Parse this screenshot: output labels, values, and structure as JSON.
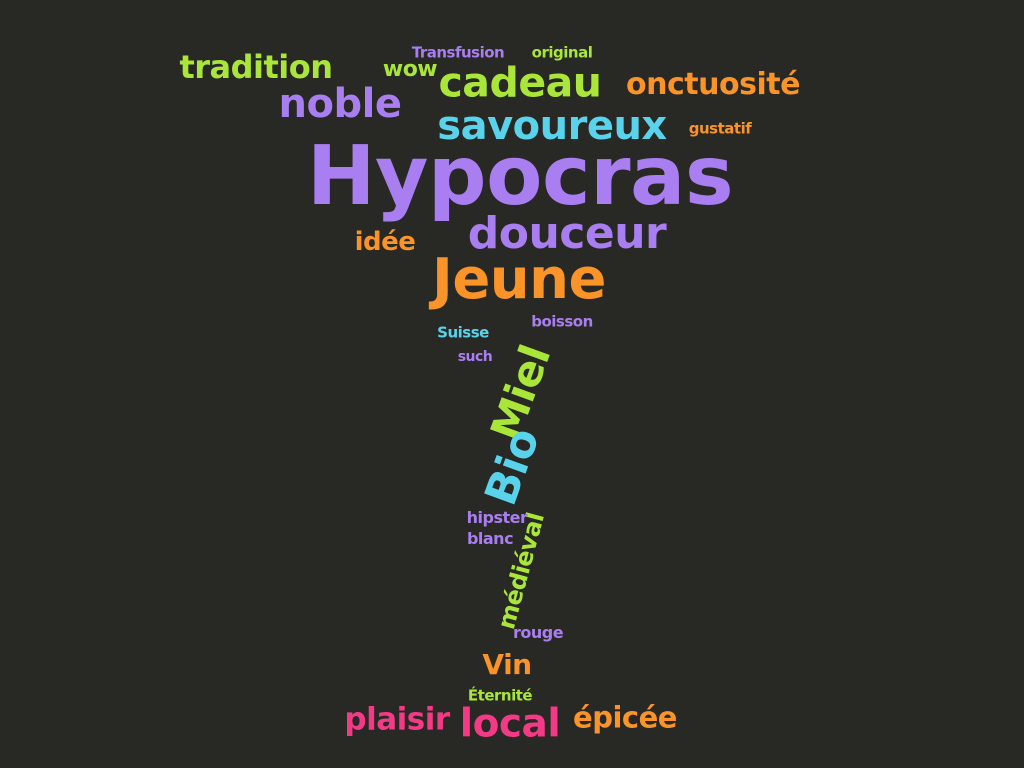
{
  "background": "#282824",
  "palette": {
    "purple": "#a97ef0",
    "green": "#a9e639",
    "blue": "#59d2ec",
    "orange": "#fb9428",
    "pink": "#f43a86"
  },
  "words": [
    {
      "text": "Hypocras",
      "color": "purple",
      "rotation": 0
    },
    {
      "text": "Jeune",
      "color": "orange",
      "rotation": 0
    },
    {
      "text": "savoureux",
      "color": "blue",
      "rotation": 0
    },
    {
      "text": "cadeau",
      "color": "green",
      "rotation": 0
    },
    {
      "text": "douceur",
      "color": "purple",
      "rotation": 0
    },
    {
      "text": "noble",
      "color": "purple",
      "rotation": 0
    },
    {
      "text": "onctuosité",
      "color": "orange",
      "rotation": 0
    },
    {
      "text": "tradition",
      "color": "green",
      "rotation": 0
    },
    {
      "text": "wow",
      "color": "green",
      "rotation": 0
    },
    {
      "text": "Transfusion",
      "color": "purple",
      "rotation": 0
    },
    {
      "text": "original",
      "color": "green",
      "rotation": 0
    },
    {
      "text": "gustatif",
      "color": "orange",
      "rotation": 0
    },
    {
      "text": "idée",
      "color": "orange",
      "rotation": 0
    },
    {
      "text": "Suisse",
      "color": "blue",
      "rotation": 0
    },
    {
      "text": "boisson",
      "color": "purple",
      "rotation": 0
    },
    {
      "text": "such",
      "color": "purple",
      "rotation": 0
    },
    {
      "text": "Miel",
      "color": "green",
      "rotation": -70
    },
    {
      "text": "Bio",
      "color": "blue",
      "rotation": -70
    },
    {
      "text": "médiéval",
      "color": "green",
      "rotation": -75
    },
    {
      "text": "hipster",
      "color": "purple",
      "rotation": 0
    },
    {
      "text": "blanc",
      "color": "purple",
      "rotation": 0
    },
    {
      "text": "rouge",
      "color": "purple",
      "rotation": 0
    },
    {
      "text": "Vin",
      "color": "orange",
      "rotation": 0
    },
    {
      "text": "Éternité",
      "color": "green",
      "rotation": 0
    },
    {
      "text": "plaisir",
      "color": "pink",
      "rotation": 0
    },
    {
      "text": "local",
      "color": "pink",
      "rotation": 0
    },
    {
      "text": "épicée",
      "color": "orange",
      "rotation": 0
    }
  ]
}
